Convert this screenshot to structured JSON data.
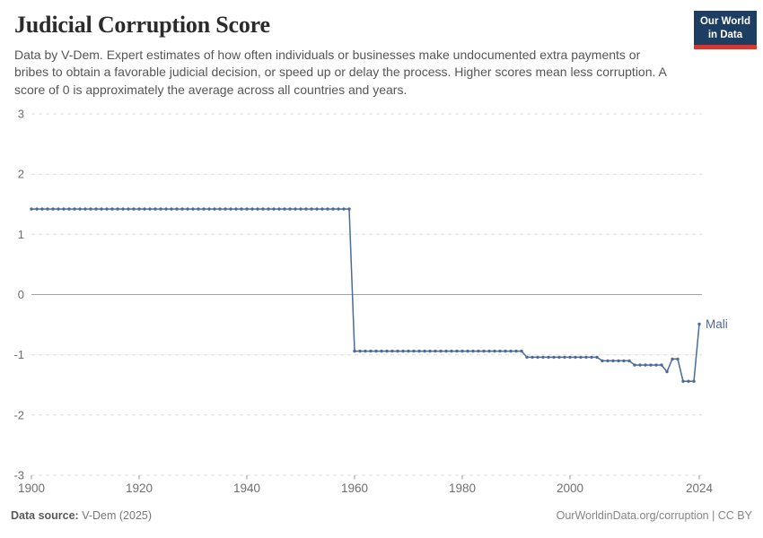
{
  "header": {
    "title": "Judicial Corruption Score",
    "subtitle": "Data by V-Dem. Expert estimates of how often individuals or businesses make undocumented extra payments or bribes to obtain a favorable judicial decision, or speed up or delay the process. Higher scores mean less corruption. A score of 0 is approximately the average across all countries and years.",
    "logo": {
      "line1": "Our World",
      "line2": "in Data"
    }
  },
  "footer": {
    "source_label": "Data source:",
    "source_value": "V-Dem (2025)",
    "rights": "OurWorldinData.org/corruption | CC BY"
  },
  "colors": {
    "line": "#4c6a9c",
    "gridline": "#dcdcdc",
    "zero_line": "#a3a3a3",
    "axis_text": "#6e6e6e",
    "title": "#2b2b2b",
    "subtitle": "#555555",
    "logo_bg": "#1d3d63",
    "logo_stripe": "#cf3a34"
  },
  "chart_data": {
    "type": "line",
    "title": "Judicial Corruption Score",
    "entity": "Mali",
    "end_label": "Mali",
    "xlabel": "",
    "ylabel": "",
    "xlim": [
      1900,
      2024
    ],
    "ylim": [
      -3,
      3
    ],
    "x_ticks": [
      1900,
      1920,
      1940,
      1960,
      1980,
      2000,
      2024
    ],
    "y_ticks": [
      3,
      2,
      1,
      0,
      -1,
      -2,
      -3
    ],
    "grid": "horizontal-dashed",
    "legend_position": "end-of-line-label",
    "series": [
      {
        "name": "Mali",
        "color": "#4c6a9c",
        "points": [
          [
            1900,
            1.42
          ],
          [
            1901,
            1.42
          ],
          [
            1902,
            1.42
          ],
          [
            1903,
            1.42
          ],
          [
            1904,
            1.42
          ],
          [
            1905,
            1.42
          ],
          [
            1906,
            1.42
          ],
          [
            1907,
            1.42
          ],
          [
            1908,
            1.42
          ],
          [
            1909,
            1.42
          ],
          [
            1910,
            1.42
          ],
          [
            1911,
            1.42
          ],
          [
            1912,
            1.42
          ],
          [
            1913,
            1.42
          ],
          [
            1914,
            1.42
          ],
          [
            1915,
            1.42
          ],
          [
            1916,
            1.42
          ],
          [
            1917,
            1.42
          ],
          [
            1918,
            1.42
          ],
          [
            1919,
            1.42
          ],
          [
            1920,
            1.42
          ],
          [
            1921,
            1.42
          ],
          [
            1922,
            1.42
          ],
          [
            1923,
            1.42
          ],
          [
            1924,
            1.42
          ],
          [
            1925,
            1.42
          ],
          [
            1926,
            1.42
          ],
          [
            1927,
            1.42
          ],
          [
            1928,
            1.42
          ],
          [
            1929,
            1.42
          ],
          [
            1930,
            1.42
          ],
          [
            1931,
            1.42
          ],
          [
            1932,
            1.42
          ],
          [
            1933,
            1.42
          ],
          [
            1934,
            1.42
          ],
          [
            1935,
            1.42
          ],
          [
            1936,
            1.42
          ],
          [
            1937,
            1.42
          ],
          [
            1938,
            1.42
          ],
          [
            1939,
            1.42
          ],
          [
            1940,
            1.42
          ],
          [
            1941,
            1.42
          ],
          [
            1942,
            1.42
          ],
          [
            1943,
            1.42
          ],
          [
            1944,
            1.42
          ],
          [
            1945,
            1.42
          ],
          [
            1946,
            1.42
          ],
          [
            1947,
            1.42
          ],
          [
            1948,
            1.42
          ],
          [
            1949,
            1.42
          ],
          [
            1950,
            1.42
          ],
          [
            1951,
            1.42
          ],
          [
            1952,
            1.42
          ],
          [
            1953,
            1.42
          ],
          [
            1954,
            1.42
          ],
          [
            1955,
            1.42
          ],
          [
            1956,
            1.42
          ],
          [
            1957,
            1.42
          ],
          [
            1958,
            1.42
          ],
          [
            1959,
            1.42
          ],
          [
            1960,
            -0.94
          ],
          [
            1961,
            -0.94
          ],
          [
            1962,
            -0.94
          ],
          [
            1963,
            -0.94
          ],
          [
            1964,
            -0.94
          ],
          [
            1965,
            -0.94
          ],
          [
            1966,
            -0.94
          ],
          [
            1967,
            -0.94
          ],
          [
            1968,
            -0.94
          ],
          [
            1969,
            -0.94
          ],
          [
            1970,
            -0.94
          ],
          [
            1971,
            -0.94
          ],
          [
            1972,
            -0.94
          ],
          [
            1973,
            -0.94
          ],
          [
            1974,
            -0.94
          ],
          [
            1975,
            -0.94
          ],
          [
            1976,
            -0.94
          ],
          [
            1977,
            -0.94
          ],
          [
            1978,
            -0.94
          ],
          [
            1979,
            -0.94
          ],
          [
            1980,
            -0.94
          ],
          [
            1981,
            -0.94
          ],
          [
            1982,
            -0.94
          ],
          [
            1983,
            -0.94
          ],
          [
            1984,
            -0.94
          ],
          [
            1985,
            -0.94
          ],
          [
            1986,
            -0.94
          ],
          [
            1987,
            -0.94
          ],
          [
            1988,
            -0.94
          ],
          [
            1989,
            -0.94
          ],
          [
            1990,
            -0.94
          ],
          [
            1991,
            -0.94
          ],
          [
            1992,
            -1.04
          ],
          [
            1993,
            -1.04
          ],
          [
            1994,
            -1.04
          ],
          [
            1995,
            -1.04
          ],
          [
            1996,
            -1.04
          ],
          [
            1997,
            -1.04
          ],
          [
            1998,
            -1.04
          ],
          [
            1999,
            -1.04
          ],
          [
            2000,
            -1.04
          ],
          [
            2001,
            -1.04
          ],
          [
            2002,
            -1.04
          ],
          [
            2003,
            -1.04
          ],
          [
            2004,
            -1.04
          ],
          [
            2005,
            -1.04
          ],
          [
            2006,
            -1.1
          ],
          [
            2007,
            -1.1
          ],
          [
            2008,
            -1.1
          ],
          [
            2009,
            -1.1
          ],
          [
            2010,
            -1.1
          ],
          [
            2011,
            -1.1
          ],
          [
            2012,
            -1.17
          ],
          [
            2013,
            -1.17
          ],
          [
            2014,
            -1.17
          ],
          [
            2015,
            -1.17
          ],
          [
            2016,
            -1.17
          ],
          [
            2017,
            -1.17
          ],
          [
            2018,
            -1.28
          ],
          [
            2019,
            -1.07
          ],
          [
            2020,
            -1.07
          ],
          [
            2021,
            -1.44
          ],
          [
            2022,
            -1.44
          ],
          [
            2023,
            -1.44
          ],
          [
            2024,
            -0.49
          ]
        ]
      }
    ]
  }
}
